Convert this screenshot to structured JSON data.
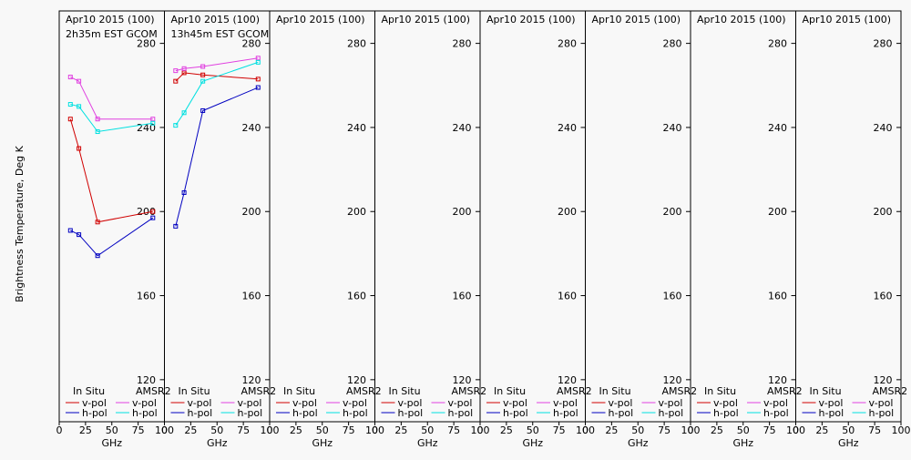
{
  "ylabel": "Brightness Temperature, Deg K",
  "legend": {
    "in_situ": "In Situ",
    "amsr2": "AMSR2",
    "vpol": "v-pol",
    "hpol": "h-pol"
  },
  "colors": {
    "insitu_v": "#d00000",
    "insitu_h": "#0000c0",
    "amsr2_v": "#e040e0",
    "amsr2_h": "#00e0e0"
  },
  "chart_data": [
    {
      "type": "line",
      "title": "Apr10 2015 (100)",
      "subtitle": "2h35m EST GCOM",
      "xlabel": "GHz",
      "xlim": [
        0,
        100
      ],
      "ylim": [
        100,
        295
      ],
      "xticks": [
        0,
        25,
        50,
        75,
        100
      ],
      "yticks": [
        120,
        160,
        200,
        240,
        280
      ],
      "x": [
        10.65,
        18.7,
        36.5,
        89.0
      ],
      "series": [
        {
          "name": "In Situ v-pol",
          "color": "#d00000",
          "values": [
            244,
            230,
            195,
            200
          ]
        },
        {
          "name": "In Situ h-pol",
          "color": "#0000c0",
          "values": [
            191,
            189,
            179,
            197
          ]
        },
        {
          "name": "AMSR2 v-pol",
          "color": "#e040e0",
          "values": [
            264,
            262,
            244,
            244
          ]
        },
        {
          "name": "AMSR2 h-pol",
          "color": "#00e0e0",
          "values": [
            251,
            250,
            238,
            242
          ]
        }
      ]
    },
    {
      "type": "line",
      "title": "Apr10 2015 (100)",
      "subtitle": "13h45m EST GCOM",
      "xlabel": "GHz",
      "xlim": [
        0,
        100
      ],
      "ylim": [
        100,
        295
      ],
      "xticks": [
        0,
        25,
        50,
        75,
        100
      ],
      "yticks": [
        120,
        160,
        200,
        240,
        280
      ],
      "x": [
        10.65,
        18.7,
        36.5,
        89.0
      ],
      "series": [
        {
          "name": "In Situ v-pol",
          "color": "#d00000",
          "values": [
            262,
            266,
            265,
            263
          ]
        },
        {
          "name": "In Situ h-pol",
          "color": "#0000c0",
          "values": [
            193,
            209,
            248,
            259
          ]
        },
        {
          "name": "AMSR2 v-pol",
          "color": "#e040e0",
          "values": [
            267,
            268,
            269,
            273
          ]
        },
        {
          "name": "AMSR2 h-pol",
          "color": "#00e0e0",
          "values": [
            241,
            247,
            262,
            271
          ]
        }
      ]
    },
    {
      "type": "line",
      "title": "Apr10 2015 (100)",
      "subtitle": "",
      "xlabel": "GHz",
      "xlim": [
        0,
        100
      ],
      "ylim": [
        100,
        295
      ],
      "xticks": [
        0,
        25,
        50,
        75,
        100
      ],
      "yticks": [
        120,
        160,
        200,
        240,
        280
      ],
      "x": [],
      "series": []
    },
    {
      "type": "line",
      "title": "Apr10 2015 (100)",
      "subtitle": "",
      "xlabel": "GHz",
      "xlim": [
        0,
        100
      ],
      "ylim": [
        100,
        295
      ],
      "xticks": [
        0,
        25,
        50,
        75,
        100
      ],
      "yticks": [
        120,
        160,
        200,
        240,
        280
      ],
      "x": [],
      "series": []
    },
    {
      "type": "line",
      "title": "Apr10 2015 (100)",
      "subtitle": "",
      "xlabel": "GHz",
      "xlim": [
        0,
        100
      ],
      "ylim": [
        100,
        295
      ],
      "xticks": [
        0,
        25,
        50,
        75,
        100
      ],
      "yticks": [
        120,
        160,
        200,
        240,
        280
      ],
      "x": [],
      "series": []
    },
    {
      "type": "line",
      "title": "Apr10 2015 (100)",
      "subtitle": "",
      "xlabel": "GHz",
      "xlim": [
        0,
        100
      ],
      "ylim": [
        100,
        295
      ],
      "xticks": [
        0,
        25,
        50,
        75,
        100
      ],
      "yticks": [
        120,
        160,
        200,
        240,
        280
      ],
      "x": [],
      "series": []
    },
    {
      "type": "line",
      "title": "Apr10 2015 (100)",
      "subtitle": "",
      "xlabel": "GHz",
      "xlim": [
        0,
        100
      ],
      "ylim": [
        100,
        295
      ],
      "xticks": [
        0,
        25,
        50,
        75,
        100
      ],
      "yticks": [
        120,
        160,
        200,
        240,
        280
      ],
      "x": [],
      "series": []
    },
    {
      "type": "line",
      "title": "Apr10 2015 (100)",
      "subtitle": "",
      "xlabel": "GHz",
      "xlim": [
        0,
        100
      ],
      "ylim": [
        100,
        295
      ],
      "xticks": [
        0,
        25,
        50,
        75,
        100
      ],
      "yticks": [
        120,
        160,
        200,
        240,
        280
      ],
      "x": [],
      "series": []
    }
  ]
}
